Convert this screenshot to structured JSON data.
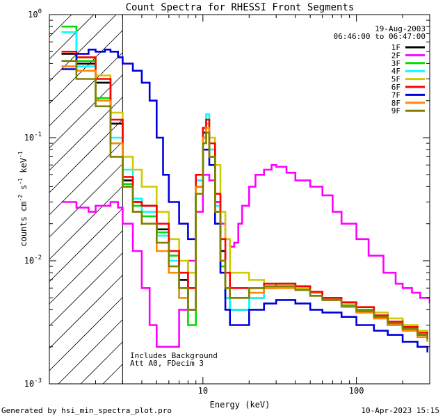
{
  "chart_data": {
    "type": "line",
    "title": "Count Spectra for RHESSI Front Segments",
    "xlabel": "Energy (keV)",
    "ylabel": "counts cm",
    "ylabel_exp1": "-2",
    "ylabel_mid": " s",
    "ylabel_exp2": "-1",
    "ylabel_end": " keV",
    "ylabel_exp3": "-1",
    "xscale": "log",
    "yscale": "log",
    "xlim": [
      1,
      300
    ],
    "ylim": [
      0.001,
      1
    ],
    "x_ticks": [
      {
        "value": 10,
        "label": "10"
      },
      {
        "value": 100,
        "label": "100"
      }
    ],
    "y_ticks": [
      {
        "value": 1,
        "base": "10",
        "exp": "0"
      },
      {
        "value": 0.1,
        "base": "10",
        "exp": "-1"
      },
      {
        "value": 0.01,
        "base": "10",
        "exp": "-2"
      },
      {
        "value": 0.001,
        "base": "10",
        "exp": "-3"
      }
    ],
    "date": "19-Aug-2003",
    "time_range": "06:46:00 to 06:47:00",
    "shaded_region": {
      "x_max": 3
    },
    "annotations": [
      "Includes Background",
      "Att A0, FDecim 3"
    ],
    "series": [
      {
        "name": "1F",
        "color": "#000000",
        "values": [
          [
            1.2,
            0.48
          ],
          [
            1.5,
            0.4
          ],
          [
            2,
            0.28
          ],
          [
            2.5,
            0.13
          ],
          [
            3,
            0.045
          ],
          [
            3.5,
            0.03
          ],
          [
            4,
            0.028
          ],
          [
            5,
            0.018
          ],
          [
            6,
            0.011
          ],
          [
            7,
            0.007
          ],
          [
            8,
            0.004
          ],
          [
            9,
            0.04
          ],
          [
            10,
            0.11
          ],
          [
            10.5,
            0.13
          ],
          [
            11,
            0.08
          ],
          [
            12,
            0.03
          ],
          [
            13,
            0.012
          ],
          [
            14,
            0.005
          ],
          [
            15,
            0.004
          ],
          [
            20,
            0.005
          ],
          [
            25,
            0.006
          ],
          [
            30,
            0.0065
          ],
          [
            40,
            0.006
          ],
          [
            50,
            0.0055
          ],
          [
            60,
            0.005
          ],
          [
            80,
            0.0045
          ],
          [
            100,
            0.004
          ],
          [
            130,
            0.0035
          ],
          [
            160,
            0.003
          ],
          [
            200,
            0.0028
          ],
          [
            250,
            0.0025
          ],
          [
            290,
            0.0022
          ]
        ]
      },
      {
        "name": "2F",
        "color": "#ff00ff",
        "values": [
          [
            1.2,
            0.03
          ],
          [
            1.5,
            0.027
          ],
          [
            1.8,
            0.025
          ],
          [
            2,
            0.028
          ],
          [
            2.5,
            0.03
          ],
          [
            2.8,
            0.027
          ],
          [
            3,
            0.02
          ],
          [
            3.5,
            0.012
          ],
          [
            4,
            0.006
          ],
          [
            4.5,
            0.003
          ],
          [
            5,
            0.002
          ],
          [
            6,
            0.002
          ],
          [
            7,
            0.004
          ],
          [
            8,
            0.01
          ],
          [
            9,
            0.025
          ],
          [
            10,
            0.05
          ],
          [
            11,
            0.045
          ],
          [
            12,
            0.03
          ],
          [
            13,
            0.02
          ],
          [
            14,
            0.015
          ],
          [
            15,
            0.013
          ],
          [
            16,
            0.014
          ],
          [
            17,
            0.02
          ],
          [
            18,
            0.028
          ],
          [
            20,
            0.04
          ],
          [
            22,
            0.05
          ],
          [
            25,
            0.055
          ],
          [
            28,
            0.06
          ],
          [
            30,
            0.058
          ],
          [
            35,
            0.052
          ],
          [
            40,
            0.045
          ],
          [
            50,
            0.04
          ],
          [
            60,
            0.034
          ],
          [
            70,
            0.025
          ],
          [
            80,
            0.02
          ],
          [
            100,
            0.015
          ],
          [
            120,
            0.011
          ],
          [
            150,
            0.008
          ],
          [
            180,
            0.0065
          ],
          [
            200,
            0.006
          ],
          [
            230,
            0.0055
          ],
          [
            260,
            0.005
          ],
          [
            300,
            0.0045
          ]
        ]
      },
      {
        "name": "3F",
        "color": "#00dd00",
        "values": [
          [
            1.2,
            0.8
          ],
          [
            1.5,
            0.42
          ],
          [
            2,
            0.21
          ],
          [
            2.5,
            0.09
          ],
          [
            3,
            0.042
          ],
          [
            3.5,
            0.028
          ],
          [
            4,
            0.023
          ],
          [
            5,
            0.017
          ],
          [
            6,
            0.011
          ],
          [
            7,
            0.006
          ],
          [
            8,
            0.003
          ],
          [
            9,
            0.04
          ],
          [
            10,
            0.1
          ],
          [
            10.5,
            0.14
          ],
          [
            11,
            0.07
          ],
          [
            12,
            0.025
          ],
          [
            13,
            0.009
          ],
          [
            14,
            0.006
          ],
          [
            15,
            0.005
          ],
          [
            20,
            0.006
          ],
          [
            25,
            0.006
          ],
          [
            30,
            0.0065
          ],
          [
            40,
            0.006
          ],
          [
            50,
            0.0055
          ],
          [
            60,
            0.005
          ],
          [
            80,
            0.0045
          ],
          [
            100,
            0.004
          ],
          [
            130,
            0.0035
          ],
          [
            160,
            0.003
          ],
          [
            200,
            0.0028
          ],
          [
            250,
            0.0025
          ],
          [
            290,
            0.0023
          ]
        ]
      },
      {
        "name": "4F",
        "color": "#00ffff",
        "values": [
          [
            1.2,
            0.72
          ],
          [
            1.5,
            0.38
          ],
          [
            2,
            0.2
          ],
          [
            2.5,
            0.1
          ],
          [
            3,
            0.055
          ],
          [
            3.5,
            0.032
          ],
          [
            4,
            0.025
          ],
          [
            5,
            0.016
          ],
          [
            6,
            0.01
          ],
          [
            7,
            0.005
          ],
          [
            8,
            0.004
          ],
          [
            9,
            0.045
          ],
          [
            10,
            0.12
          ],
          [
            10.5,
            0.155
          ],
          [
            11,
            0.08
          ],
          [
            12,
            0.028
          ],
          [
            13,
            0.01
          ],
          [
            14,
            0.005
          ],
          [
            15,
            0.004
          ],
          [
            20,
            0.005
          ],
          [
            25,
            0.006
          ],
          [
            30,
            0.0062
          ],
          [
            40,
            0.0058
          ],
          [
            50,
            0.0052
          ],
          [
            60,
            0.0048
          ],
          [
            80,
            0.0042
          ],
          [
            100,
            0.0038
          ],
          [
            130,
            0.0034
          ],
          [
            160,
            0.003
          ],
          [
            200,
            0.0027
          ],
          [
            250,
            0.0024
          ],
          [
            290,
            0.0022
          ]
        ]
      },
      {
        "name": "5F",
        "color": "#cccc00",
        "values": [
          [
            1.2,
            0.42
          ],
          [
            1.5,
            0.45
          ],
          [
            2,
            0.32
          ],
          [
            2.5,
            0.16
          ],
          [
            3,
            0.07
          ],
          [
            3.5,
            0.055
          ],
          [
            4,
            0.04
          ],
          [
            5,
            0.025
          ],
          [
            6,
            0.015
          ],
          [
            7,
            0.01
          ],
          [
            8,
            0.008
          ],
          [
            9,
            0.04
          ],
          [
            10,
            0.1
          ],
          [
            10.5,
            0.13
          ],
          [
            11,
            0.1
          ],
          [
            12,
            0.06
          ],
          [
            13,
            0.025
          ],
          [
            14,
            0.015
          ],
          [
            15,
            0.008
          ],
          [
            20,
            0.007
          ],
          [
            25,
            0.0065
          ],
          [
            30,
            0.0065
          ],
          [
            40,
            0.006
          ],
          [
            50,
            0.0055
          ],
          [
            60,
            0.005
          ],
          [
            80,
            0.0045
          ],
          [
            100,
            0.0042
          ],
          [
            130,
            0.0038
          ],
          [
            160,
            0.0034
          ],
          [
            200,
            0.003
          ],
          [
            250,
            0.0027
          ],
          [
            290,
            0.0025
          ]
        ]
      },
      {
        "name": "6F",
        "color": "#ff0000",
        "values": [
          [
            1.2,
            0.5
          ],
          [
            1.5,
            0.45
          ],
          [
            2,
            0.3
          ],
          [
            2.5,
            0.14
          ],
          [
            3,
            0.048
          ],
          [
            3.5,
            0.03
          ],
          [
            4,
            0.028
          ],
          [
            5,
            0.02
          ],
          [
            6,
            0.012
          ],
          [
            7,
            0.008
          ],
          [
            8,
            0.006
          ],
          [
            9,
            0.05
          ],
          [
            10,
            0.12
          ],
          [
            10.5,
            0.14
          ],
          [
            11,
            0.09
          ],
          [
            12,
            0.035
          ],
          [
            13,
            0.015
          ],
          [
            14,
            0.008
          ],
          [
            15,
            0.006
          ],
          [
            20,
            0.006
          ],
          [
            25,
            0.0065
          ],
          [
            30,
            0.0065
          ],
          [
            40,
            0.0062
          ],
          [
            50,
            0.0056
          ],
          [
            60,
            0.005
          ],
          [
            80,
            0.0046
          ],
          [
            100,
            0.0042
          ],
          [
            130,
            0.0036
          ],
          [
            160,
            0.0032
          ],
          [
            200,
            0.0029
          ],
          [
            250,
            0.0026
          ],
          [
            290,
            0.0024
          ]
        ]
      },
      {
        "name": "7F",
        "color": "#0000dd",
        "values": [
          [
            1.2,
            0.36
          ],
          [
            1.5,
            0.48
          ],
          [
            1.8,
            0.52
          ],
          [
            2,
            0.5
          ],
          [
            2.3,
            0.52
          ],
          [
            2.5,
            0.5
          ],
          [
            2.8,
            0.45
          ],
          [
            3,
            0.4
          ],
          [
            3.5,
            0.35
          ],
          [
            4,
            0.28
          ],
          [
            4.5,
            0.2
          ],
          [
            5,
            0.1
          ],
          [
            5.5,
            0.05
          ],
          [
            6,
            0.03
          ],
          [
            7,
            0.02
          ],
          [
            8,
            0.015
          ],
          [
            9,
            0.04
          ],
          [
            10,
            0.08
          ],
          [
            11,
            0.06
          ],
          [
            12,
            0.02
          ],
          [
            13,
            0.008
          ],
          [
            14,
            0.004
          ],
          [
            15,
            0.003
          ],
          [
            20,
            0.004
          ],
          [
            25,
            0.0045
          ],
          [
            30,
            0.0048
          ],
          [
            40,
            0.0045
          ],
          [
            50,
            0.004
          ],
          [
            60,
            0.0038
          ],
          [
            80,
            0.0035
          ],
          [
            100,
            0.003
          ],
          [
            130,
            0.0027
          ],
          [
            160,
            0.0025
          ],
          [
            200,
            0.0022
          ],
          [
            250,
            0.002
          ],
          [
            290,
            0.0018
          ]
        ]
      },
      {
        "name": "8F",
        "color": "#ff8800",
        "values": [
          [
            1.2,
            0.38
          ],
          [
            1.5,
            0.35
          ],
          [
            2,
            0.2
          ],
          [
            2.5,
            0.09
          ],
          [
            3,
            0.04
          ],
          [
            3.5,
            0.025
          ],
          [
            4,
            0.02
          ],
          [
            5,
            0.012
          ],
          [
            6,
            0.008
          ],
          [
            7,
            0.005
          ],
          [
            8,
            0.004
          ],
          [
            9,
            0.04
          ],
          [
            10,
            0.1
          ],
          [
            10.5,
            0.12
          ],
          [
            11,
            0.07
          ],
          [
            12,
            0.025
          ],
          [
            13,
            0.01
          ],
          [
            14,
            0.006
          ],
          [
            15,
            0.005
          ],
          [
            20,
            0.0055
          ],
          [
            25,
            0.006
          ],
          [
            30,
            0.006
          ],
          [
            40,
            0.0058
          ],
          [
            50,
            0.0052
          ],
          [
            60,
            0.0048
          ],
          [
            80,
            0.0043
          ],
          [
            100,
            0.0038
          ],
          [
            130,
            0.0034
          ],
          [
            160,
            0.003
          ],
          [
            200,
            0.0027
          ],
          [
            250,
            0.0024
          ],
          [
            290,
            0.0022
          ]
        ]
      },
      {
        "name": "9F",
        "color": "#808000",
        "values": [
          [
            1.2,
            0.42
          ],
          [
            1.5,
            0.3
          ],
          [
            2,
            0.18
          ],
          [
            2.5,
            0.07
          ],
          [
            3,
            0.04
          ],
          [
            3.5,
            0.025
          ],
          [
            4,
            0.02
          ],
          [
            5,
            0.014
          ],
          [
            6,
            0.009
          ],
          [
            7,
            0.006
          ],
          [
            8,
            0.004
          ],
          [
            9,
            0.035
          ],
          [
            10,
            0.09
          ],
          [
            10.5,
            0.11
          ],
          [
            11,
            0.07
          ],
          [
            12,
            0.025
          ],
          [
            13,
            0.01
          ],
          [
            14,
            0.006
          ],
          [
            15,
            0.005
          ],
          [
            20,
            0.006
          ],
          [
            25,
            0.0062
          ],
          [
            30,
            0.0062
          ],
          [
            40,
            0.0058
          ],
          [
            50,
            0.0052
          ],
          [
            60,
            0.0048
          ],
          [
            80,
            0.0043
          ],
          [
            100,
            0.0039
          ],
          [
            130,
            0.0035
          ],
          [
            160,
            0.0031
          ],
          [
            200,
            0.0028
          ],
          [
            250,
            0.0025
          ],
          [
            290,
            0.0023
          ]
        ]
      }
    ]
  },
  "footer": {
    "generated_by": "Generated by hsi_min_spectra_plot.pro",
    "timestamp": "10-Apr-2023 15:15"
  }
}
